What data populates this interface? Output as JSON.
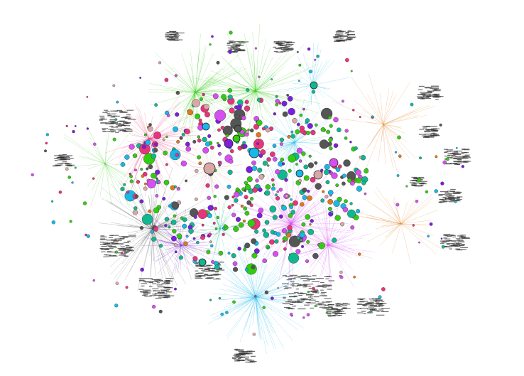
{
  "graph": {
    "background": "#ffffff",
    "communities": [
      {
        "name": "green",
        "color": "#33cc11"
      },
      {
        "name": "pink",
        "color": "#e8347a"
      },
      {
        "name": "gray",
        "color": "#555555"
      },
      {
        "name": "cyan",
        "color": "#18b8e8"
      },
      {
        "name": "magenta",
        "color": "#d64ff0"
      },
      {
        "name": "purple",
        "color": "#7a1fe0"
      },
      {
        "name": "orange",
        "color": "#e07a18"
      },
      {
        "name": "teal",
        "color": "#10b890"
      },
      {
        "name": "rose",
        "color": "#d8a8a8"
      }
    ],
    "node_types": [
      "hub",
      "node",
      "label-cluster"
    ]
  }
}
